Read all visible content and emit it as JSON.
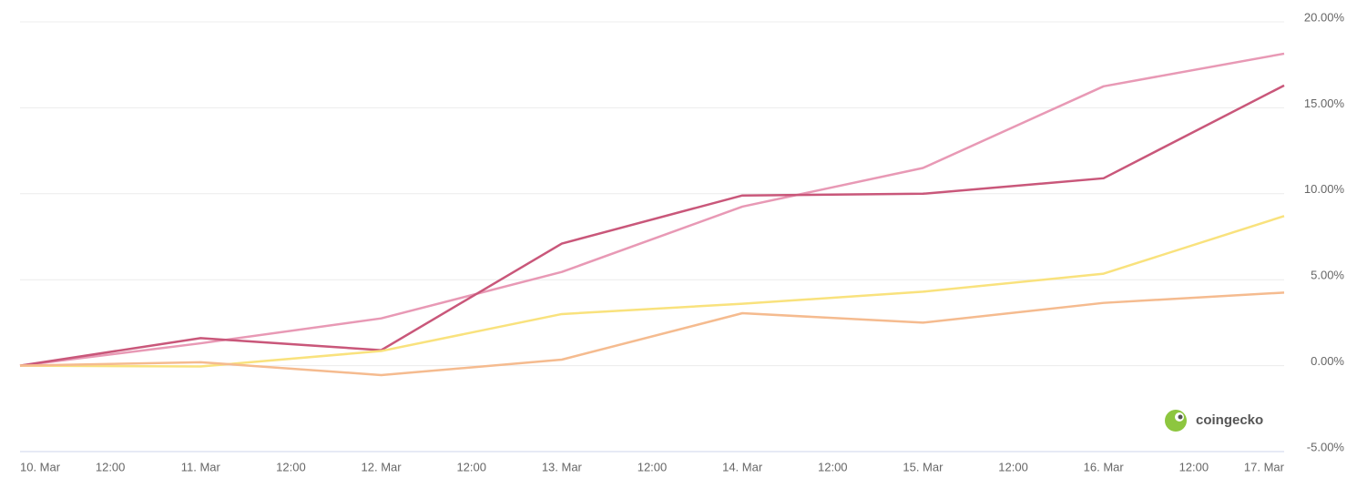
{
  "chart_data": {
    "type": "line",
    "categories": [
      "10. Mar",
      "11. Mar",
      "12. Mar",
      "13. Mar",
      "14. Mar",
      "15. Mar",
      "16. Mar",
      "17. Mar"
    ],
    "xtick_labels": [
      "10. Mar",
      "12:00",
      "11. Mar",
      "12:00",
      "12. Mar",
      "12:00",
      "13. Mar",
      "12:00",
      "14. Mar",
      "12:00",
      "15. Mar",
      "12:00",
      "16. Mar",
      "12:00",
      "17. Mar"
    ],
    "series": [
      {
        "color": "#e899b5",
        "values": [
          0,
          1.3,
          2.75,
          5.45,
          9.25,
          11.5,
          16.25,
          18.15
        ]
      },
      {
        "color": "#c9577a",
        "values": [
          0,
          1.6,
          0.9,
          7.1,
          9.9,
          10.0,
          10.9,
          16.3
        ]
      },
      {
        "color": "#f9e27d",
        "values": [
          0,
          -0.05,
          0.85,
          3.0,
          3.6,
          4.3,
          5.35,
          8.7
        ]
      },
      {
        "color": "#f5bb8f",
        "values": [
          0,
          0.2,
          -0.55,
          0.35,
          3.05,
          2.5,
          3.65,
          4.25
        ]
      }
    ],
    "ylim": [
      -5,
      20
    ],
    "yticks": [
      {
        "value": -5,
        "label": "-5.00%"
      },
      {
        "value": 0,
        "label": "0.00%"
      },
      {
        "value": 5,
        "label": "5.00%"
      },
      {
        "value": 10,
        "label": "10.00%"
      },
      {
        "value": 15,
        "label": "15.00%"
      },
      {
        "value": 20,
        "label": "20.00%"
      }
    ],
    "grid": true,
    "watermark": "coingecko"
  }
}
